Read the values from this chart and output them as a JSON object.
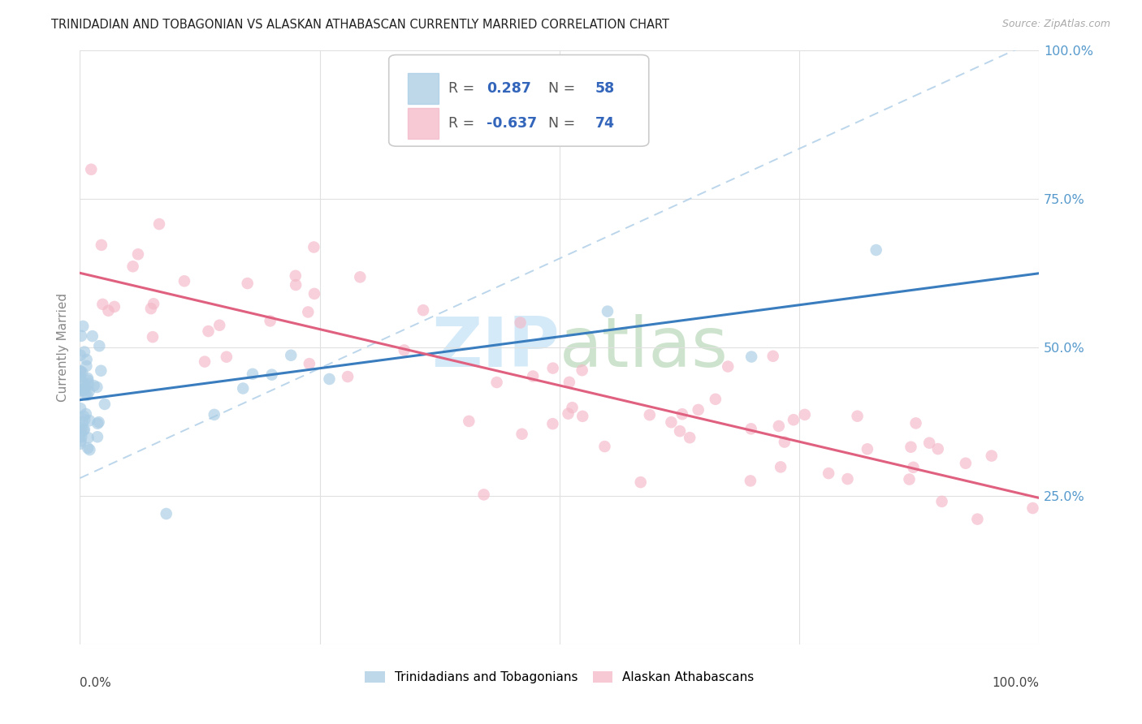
{
  "title": "TRINIDADIAN AND TOBAGONIAN VS ALASKAN ATHABASCAN CURRENTLY MARRIED CORRELATION CHART",
  "source": "Source: ZipAtlas.com",
  "ylabel": "Currently Married",
  "watermark": "ZIPatlas",
  "legend_blue_rv": "0.287",
  "legend_blue_nv": "58",
  "legend_pink_rv": "-0.637",
  "legend_pink_nv": "74",
  "legend_label_blue": "Trinidadians and Tobagonians",
  "legend_label_pink": "Alaskan Athabascans",
  "blue_color": "#a8cce4",
  "pink_color": "#f4b8c8",
  "blue_line_color": "#3a7dbf",
  "pink_line_color": "#e06080",
  "dashed_line_color": "#b0cfe8",
  "right_axis_color": "#5599cc",
  "background_color": "#ffffff",
  "grid_color": "#e0e0e0",
  "title_color": "#222222",
  "legend_text_color": "#555555",
  "legend_value_color": "#3366bb",
  "source_color": "#aaaaaa",
  "watermark_color": "#d0e8f8",
  "ylabel_color": "#888888"
}
